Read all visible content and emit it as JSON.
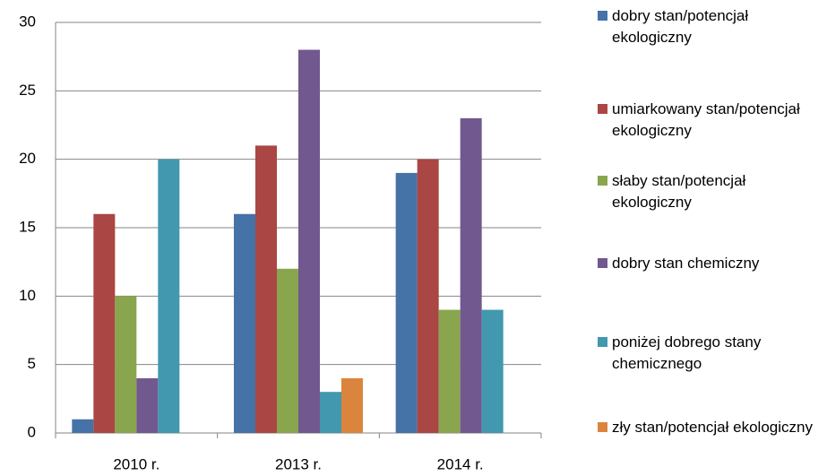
{
  "chart_data": {
    "type": "bar",
    "categories": [
      "2010 r.",
      "2013 r.",
      "2014 r."
    ],
    "series": [
      {
        "name": "dobry stan/potencjał ekologiczny",
        "color": "#4572a7",
        "values": [
          1,
          16,
          19
        ]
      },
      {
        "name": "umiarkowany stan/potencjał ekologiczny",
        "color": "#aa4643",
        "values": [
          16,
          21,
          20
        ]
      },
      {
        "name": "słaby stan/potencjał ekologiczny",
        "color": "#89a54e",
        "values": [
          10,
          12,
          9
        ]
      },
      {
        "name": "dobry stan chemiczny",
        "color": "#71588f",
        "values": [
          4,
          28,
          23
        ]
      },
      {
        "name": "poniżej dobrego stany chemicznego",
        "color": "#4198af",
        "values": [
          20,
          3,
          9
        ]
      },
      {
        "name": "zły stan/potencjał ekologiczny",
        "color": "#db843d",
        "values": [
          null,
          4,
          null
        ]
      }
    ],
    "ylim": [
      0,
      30
    ],
    "yticks": [
      0,
      5,
      10,
      15,
      20,
      25,
      30
    ],
    "grid": true,
    "legend": "right"
  }
}
